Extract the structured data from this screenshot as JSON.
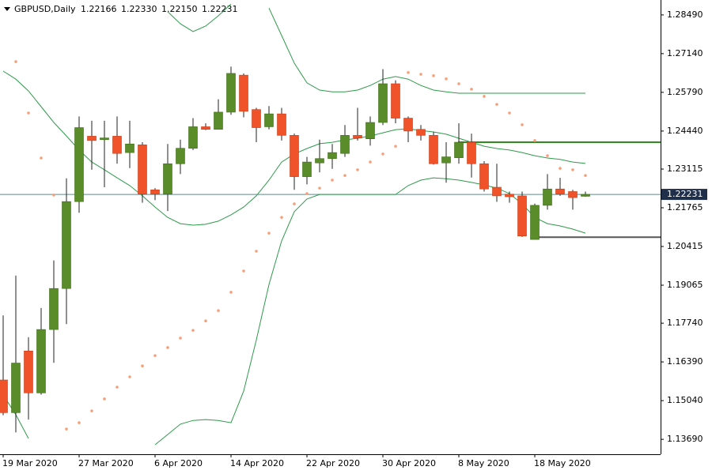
{
  "chart_data": {
    "type": "candlestick",
    "symbol": "GBPUSD,Daily",
    "header_values": [
      "1.22166",
      "1.22330",
      "1.22150",
      "1.22231"
    ],
    "categories": [
      "19 Mar 2020",
      null,
      null,
      null,
      null,
      null,
      "27 Mar 2020",
      null,
      null,
      null,
      null,
      null,
      "6 Apr 2020",
      null,
      null,
      null,
      null,
      null,
      "14 Apr 2020",
      null,
      null,
      null,
      null,
      null,
      "22 Apr 2020",
      null,
      null,
      null,
      null,
      null,
      "30 Apr 2020",
      null,
      null,
      null,
      null,
      null,
      "8 May 2020",
      null,
      null,
      null,
      null,
      null,
      "18 May 2020",
      null,
      null,
      null,
      null
    ],
    "open": [
      1.1576,
      1.1462,
      1.1677,
      1.1531,
      1.1752,
      1.1895,
      1.2198,
      1.2426,
      1.2414,
      1.2426,
      1.2369,
      1.2396,
      1.2239,
      1.2224,
      1.233,
      1.2384,
      1.2459,
      1.245,
      1.251,
      1.2639,
      1.2519,
      1.2459,
      1.2504,
      1.2429,
      1.2285,
      1.2333,
      1.2348,
      1.2366,
      1.2429,
      1.2417,
      1.2474,
      1.2609,
      1.2489,
      1.245,
      1.2429,
      1.2333,
      1.2351,
      1.2405,
      1.233,
      1.2248,
      1.2224,
      1.2218,
      1.2066,
      1.2185,
      1.2242,
      1.2233,
      1.22166
    ],
    "high": [
      1.1801,
      1.194,
      1.1725,
      1.1827,
      1.1993,
      1.2279,
      1.2495,
      1.248,
      1.248,
      1.2495,
      1.248,
      1.2405,
      1.2245,
      1.2399,
      1.2414,
      1.2489,
      1.2471,
      1.2555,
      1.2669,
      1.2645,
      1.2525,
      1.2531,
      1.2525,
      1.2435,
      1.2354,
      1.2414,
      1.2399,
      1.2465,
      1.2525,
      1.2495,
      1.266,
      1.2621,
      1.2495,
      1.2465,
      1.2441,
      1.2405,
      1.2471,
      1.2435,
      1.2339,
      1.233,
      1.2233,
      1.2233,
      1.2191,
      1.2294,
      1.2281,
      1.2239,
      1.2233
    ],
    "low": [
      1.1453,
      1.1393,
      1.1438,
      1.1525,
      1.1636,
      1.1771,
      1.2159,
      1.2309,
      1.2248,
      1.233,
      1.2315,
      1.2194,
      1.2203,
      1.2165,
      1.2294,
      1.2378,
      1.2447,
      1.245,
      1.2501,
      1.2492,
      1.2405,
      1.245,
      1.2411,
      1.2239,
      1.2258,
      1.23,
      1.2312,
      1.2354,
      1.2411,
      1.2393,
      1.2465,
      1.2471,
      1.2405,
      1.2411,
      1.2327,
      1.2264,
      1.233,
      1.2282,
      1.2233,
      1.2197,
      1.2194,
      1.2075,
      1.2066,
      1.217,
      1.2218,
      1.217,
      1.2215
    ],
    "close": [
      1.1462,
      1.1635,
      1.1531,
      1.1752,
      1.1895,
      1.2198,
      1.2456,
      1.2411,
      1.242,
      1.2366,
      1.2399,
      1.2224,
      1.2224,
      1.233,
      1.2384,
      1.2459,
      1.245,
      1.251,
      1.2645,
      1.2513,
      1.2456,
      1.2504,
      1.2429,
      1.2285,
      1.2336,
      1.2348,
      1.2369,
      1.2429,
      1.242,
      1.2474,
      1.2609,
      1.2489,
      1.2444,
      1.2429,
      1.233,
      1.2354,
      1.2405,
      1.233,
      1.2242,
      1.2218,
      1.2215,
      1.2078,
      1.2185,
      1.2242,
      1.2224,
      1.2212,
      1.22231
    ],
    "up_color": "#5b8c2a",
    "down_color": "#f0532a",
    "ylim": [
      1.1317,
      1.2901
    ],
    "yticks": [
      {
        "value": 1.2849,
        "label": "1.28490"
      },
      {
        "value": 1.2714,
        "label": "1.27140"
      },
      {
        "value": 1.2579,
        "label": "1.25790"
      },
      {
        "value": 1.2444,
        "label": "1.24440"
      },
      1.23115,
      1.21765,
      1.20415,
      1.19065,
      {
        "value": 1.1774,
        "label": "1.17740"
      },
      {
        "value": 1.1639,
        "label": "1.16390"
      },
      {
        "value": 1.1504,
        "label": "1.15040"
      },
      {
        "value": 1.1369,
        "label": "1.13690"
      }
    ],
    "current_price": {
      "value": 1.22231,
      "label": "1.22231"
    },
    "levels": [
      {
        "value": 1.2405,
        "color": "#2e8b1e"
      },
      {
        "value": 1.2074,
        "color": "#555555"
      }
    ],
    "bands": {
      "color": "#2e9a4a",
      "upper": [
        null,
        null,
        null,
        null,
        null,
        null,
        null,
        null,
        null,
        null,
        null,
        null,
        null,
        1.286,
        1.2818,
        1.2791,
        1.281,
        1.2846,
        1.2887,
        null,
        null,
        1.2873,
        1.2777,
        1.2681,
        1.2612,
        1.2587,
        1.2581,
        1.2581,
        1.2587,
        1.2603,
        1.2625,
        1.2634,
        1.2625,
        1.2603,
        1.2587,
        1.2581,
        1.2576,
        1.2576,
        1.2576,
        1.2576,
        1.2576,
        1.2576,
        1.2576,
        1.2576,
        1.2576,
        1.2576,
        1.2576
      ],
      "middle": [
        1.2653,
        1.2625,
        1.2584,
        1.2529,
        1.2474,
        1.2427,
        1.2378,
        1.2336,
        1.2309,
        1.2281,
        1.2254,
        1.2218,
        1.2179,
        1.2143,
        1.2121,
        1.2116,
        1.2119,
        1.213,
        1.2152,
        1.2179,
        1.2218,
        1.2273,
        1.2336,
        1.2364,
        1.2383,
        1.24,
        1.2405,
        1.2413,
        1.2419,
        1.2427,
        1.2438,
        1.2449,
        1.2452,
        1.2446,
        1.2441,
        1.2433,
        1.2419,
        1.2405,
        1.2391,
        1.2383,
        1.2378,
        1.2369,
        1.2358,
        1.235,
        1.2345,
        1.2336,
        1.2331
      ],
      "lower": [
        1.1524,
        1.1455,
        1.1372,
        null,
        null,
        null,
        null,
        null,
        null,
        null,
        null,
        null,
        1.135,
        1.1386,
        1.1422,
        1.1435,
        1.1438,
        1.1435,
        1.1427,
        1.1537,
        1.1716,
        1.1909,
        1.2061,
        1.2163,
        1.2207,
        1.2223,
        1.2223,
        1.2223,
        1.2223,
        1.2223,
        1.2223,
        1.2223,
        1.2254,
        1.2273,
        1.2281,
        1.2278,
        1.2273,
        1.2265,
        1.2256,
        1.2245,
        1.2226,
        1.219,
        1.2143,
        1.2121,
        1.2113,
        1.2102,
        1.2088
      ]
    },
    "sar": {
      "color": "#f4a07a",
      "values": [
        null,
        1.2686,
        1.2507,
        1.235,
        1.2221,
        1.1405,
        1.1427,
        1.1468,
        1.151,
        1.1551,
        1.1587,
        1.1625,
        1.1661,
        1.1689,
        1.1722,
        1.1749,
        1.1782,
        1.1818,
        1.1882,
        1.1956,
        1.2025,
        1.2088,
        1.2143,
        1.219,
        1.2226,
        1.2245,
        1.2273,
        1.2289,
        1.2309,
        1.2336,
        1.2364,
        1.2391,
        1.2648,
        1.2642,
        1.2637,
        1.2626,
        1.2609,
        1.259,
        1.2565,
        1.2537,
        1.2507,
        1.2466,
        1.2411,
        1.2358,
        1.2314,
        1.2309,
        1.2289
      ]
    }
  }
}
